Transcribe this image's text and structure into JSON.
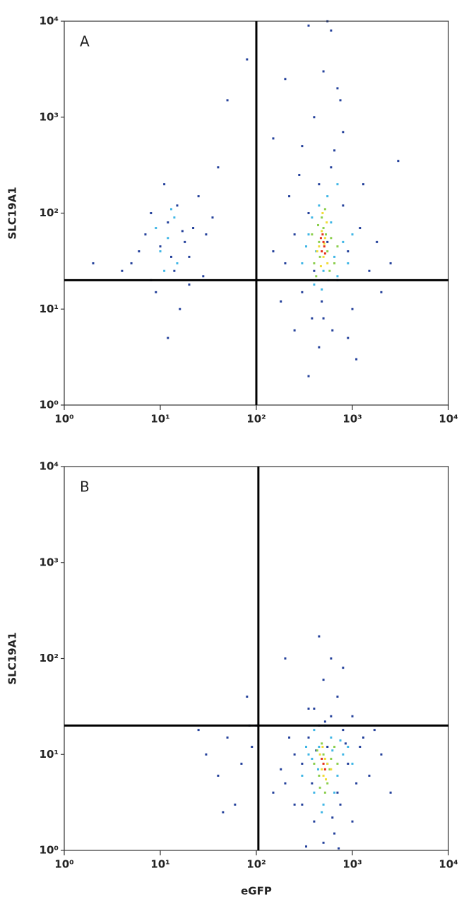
{
  "chart_data": [
    {
      "type": "scatter",
      "annotation": "A",
      "ylabel": "SLC19A1",
      "log_x": true,
      "log_y": true,
      "xlim": [
        1,
        10000
      ],
      "ylim": [
        1,
        10000
      ],
      "xticks": [
        {
          "value": 1,
          "label": "10⁰"
        },
        {
          "value": 10,
          "label": "10¹"
        },
        {
          "value": 100,
          "label": "10²"
        },
        {
          "value": 1000,
          "label": "10³"
        },
        {
          "value": 10000,
          "label": "10⁴"
        }
      ],
      "yticks": [
        {
          "value": 1,
          "label": "10⁰"
        },
        {
          "value": 10,
          "label": "10¹"
        },
        {
          "value": 100,
          "label": "10²"
        },
        {
          "value": 1000,
          "label": "10³"
        },
        {
          "value": 10000,
          "label": "10⁴"
        }
      ],
      "quadrant_x": 100,
      "quadrant_y": 20,
      "series": [
        {
          "color": "#24419b",
          "x": [
            5,
            7,
            8,
            10,
            12,
            14,
            15,
            18,
            20,
            22,
            25,
            9,
            6,
            11,
            30,
            16,
            13,
            4,
            20,
            35,
            40,
            28,
            17,
            8,
            12,
            2,
            50,
            80,
            200,
            250,
            300,
            350,
            400,
            450,
            500,
            550,
            600,
            700,
            800,
            900,
            1000,
            1200,
            1500,
            2000,
            300,
            400,
            500,
            600,
            700,
            800,
            900,
            1100,
            450,
            350,
            250,
            180,
            150,
            220,
            650,
            1300,
            1800,
            2500,
            3000,
            750,
            550,
            350,
            200,
            150,
            480,
            620,
            380,
            280
          ],
          "y": [
            30,
            60,
            20,
            45,
            80,
            25,
            120,
            50,
            35,
            70,
            150,
            15,
            40,
            200,
            60,
            10,
            35,
            25,
            18,
            90,
            300,
            22,
            65,
            100,
            5,
            30,
            1500,
            4000,
            30,
            60,
            15,
            100,
            25,
            200,
            8,
            50,
            300,
            20,
            120,
            40,
            10,
            70,
            25,
            15,
            500,
            1000,
            3000,
            8000,
            2000,
            700,
            5,
            3,
            4,
            2,
            6,
            12,
            40,
            150,
            450,
            200,
            50,
            30,
            350,
            1500,
            10000,
            9000,
            2500,
            600,
            12,
            6,
            8,
            250
          ]
        },
        {
          "color": "#3fb6e6",
          "x": [
            10,
            12,
            15,
            9,
            14,
            300,
            350,
            400,
            450,
            500,
            600,
            700,
            800,
            550,
            420,
            650,
            380,
            900,
            480,
            1000,
            11,
            13,
            700,
            330,
            560
          ],
          "y": [
            40,
            55,
            30,
            70,
            90,
            30,
            60,
            18,
            120,
            25,
            80,
            22,
            50,
            150,
            40,
            35,
            90,
            30,
            16,
            60,
            25,
            110,
            200,
            45,
            20
          ]
        },
        {
          "color": "#8ccf4d",
          "x": [
            400,
            450,
            500,
            550,
            600,
            480,
            420,
            650,
            520,
            380,
            700,
            460,
            580,
            530,
            440
          ],
          "y": [
            30,
            50,
            70,
            40,
            55,
            90,
            22,
            30,
            110,
            60,
            45,
            35,
            25,
            60,
            75
          ]
        },
        {
          "color": "#f0dc38",
          "x": [
            450,
            500,
            520,
            480,
            550,
            470,
            540,
            430,
            510,
            490
          ],
          "y": [
            45,
            35,
            55,
            65,
            30,
            28,
            80,
            40,
            48,
            100
          ]
        },
        {
          "color": "#e5321c",
          "x": [
            480,
            500,
            520,
            470,
            510,
            490
          ],
          "y": [
            40,
            50,
            38,
            55,
            45,
            60
          ]
        }
      ]
    },
    {
      "type": "scatter",
      "annotation": "B",
      "ylabel": "SLC19A1",
      "xlabel": "eGFP",
      "log_x": true,
      "log_y": true,
      "xlim": [
        1,
        10000
      ],
      "ylim": [
        1,
        10000
      ],
      "xticks": [
        {
          "value": 1,
          "label": "10⁰"
        },
        {
          "value": 10,
          "label": "10¹"
        },
        {
          "value": 100,
          "label": "10²"
        },
        {
          "value": 1000,
          "label": "10³"
        },
        {
          "value": 10000,
          "label": "10⁴"
        }
      ],
      "yticks": [
        {
          "value": 1,
          "label": "10⁰"
        },
        {
          "value": 10,
          "label": "10¹"
        },
        {
          "value": 100,
          "label": "10²"
        },
        {
          "value": 1000,
          "label": "10³"
        },
        {
          "value": 10000,
          "label": "10⁴"
        }
      ],
      "quadrant_x": 105,
      "quadrant_y": 20,
      "series": [
        {
          "color": "#24419b",
          "x": [
            30,
            40,
            50,
            60,
            70,
            80,
            90,
            25,
            45,
            85,
            200,
            250,
            300,
            350,
            400,
            450,
            500,
            550,
            600,
            700,
            800,
            900,
            1000,
            1200,
            1500,
            2000,
            2500,
            300,
            400,
            500,
            600,
            700,
            800,
            450,
            350,
            1000,
            250,
            180,
            220,
            650,
            750,
            850,
            1100,
            1300,
            380,
            520,
            620,
            420,
            1700,
            150,
            330,
            720,
            200,
            100
          ],
          "y": [
            10,
            6,
            15,
            3,
            8,
            40,
            12,
            18,
            2.5,
            20,
            5,
            10,
            3,
            15,
            2,
            20,
            1.2,
            12,
            25,
            4,
            18,
            8,
            2,
            12,
            6,
            10,
            4,
            8,
            30,
            60,
            100,
            40,
            80,
            170,
            30,
            25,
            3,
            7,
            15,
            1.5,
            3,
            13,
            5,
            15,
            5,
            22,
            2.2,
            11,
            18,
            4,
            1.1,
            1.05,
            100,
            20
          ]
        },
        {
          "color": "#3fb6e6",
          "x": [
            300,
            350,
            400,
            450,
            500,
            550,
            600,
            700,
            800,
            400,
            650,
            520,
            380,
            900,
            480,
            1000,
            620,
            440,
            750,
            330
          ],
          "y": [
            6,
            10,
            4,
            12,
            3,
            8,
            15,
            6,
            10,
            18,
            4,
            20,
            9,
            12,
            2.5,
            8,
            11,
            7,
            14,
            12
          ]
        },
        {
          "color": "#8ccf4d",
          "x": [
            400,
            450,
            500,
            550,
            600,
            480,
            520,
            430,
            580,
            650,
            460,
            700
          ],
          "y": [
            8,
            6,
            10,
            5,
            9,
            13,
            4,
            11,
            7,
            12,
            4.5,
            8
          ]
        },
        {
          "color": "#f0dc38",
          "x": [
            480,
            520,
            500,
            550,
            460,
            530,
            490,
            600
          ],
          "y": [
            7,
            9,
            6,
            8,
            10,
            5.5,
            12,
            7
          ]
        },
        {
          "color": "#e5321c",
          "x": [
            500,
            520,
            480
          ],
          "y": [
            8,
            7,
            9
          ]
        }
      ]
    }
  ]
}
